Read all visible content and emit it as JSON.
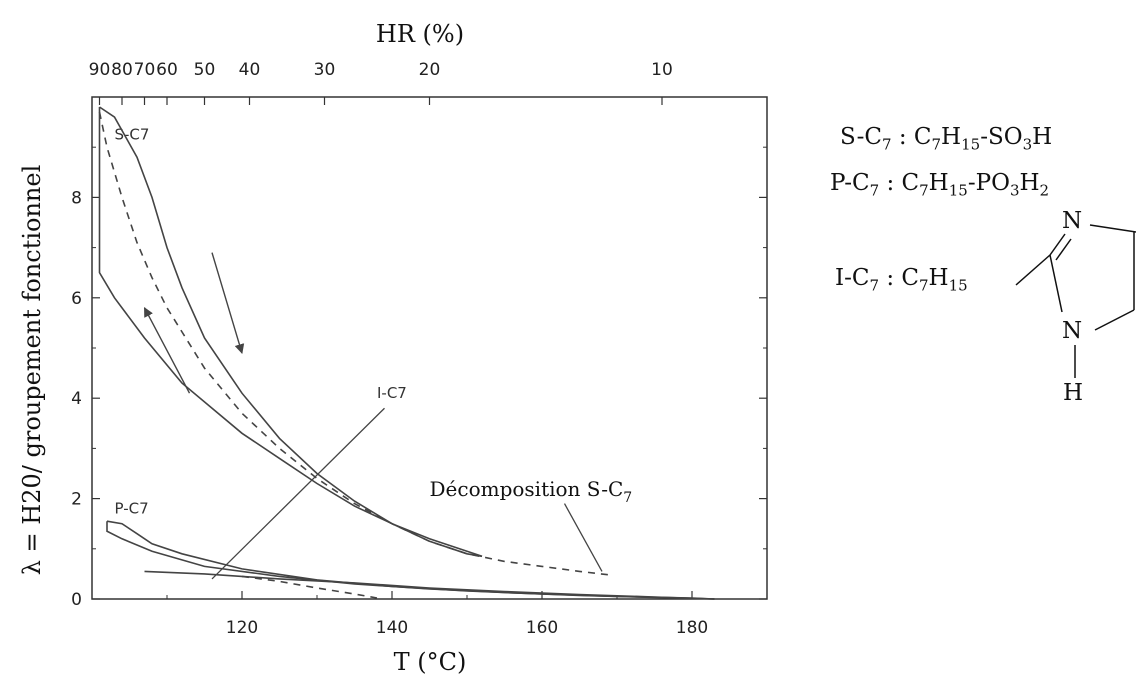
{
  "chart_data": {
    "type": "line",
    "xlabel": "T (°C)",
    "ylabel": "λ = H20/ groupement fonctionnel",
    "x2label": "HR (%)",
    "xlim": [
      100,
      190
    ],
    "ylim": [
      0,
      10
    ],
    "x_ticks": [
      120,
      140,
      160,
      180
    ],
    "y_ticks": [
      0,
      2,
      4,
      6,
      8
    ],
    "x2_ticks": [
      {
        "label": "90",
        "T": 101
      },
      {
        "label": "80",
        "T": 104
      },
      {
        "label": "70",
        "T": 107
      },
      {
        "label": "60",
        "T": 110
      },
      {
        "label": "50",
        "T": 115
      },
      {
        "label": "40",
        "T": 121
      },
      {
        "label": "30",
        "T": 131
      },
      {
        "label": "20",
        "T": 145
      },
      {
        "label": "10",
        "T": 176
      }
    ],
    "grid": false,
    "series": [
      {
        "name": "S-C7",
        "style": "solid",
        "points": [
          [
            101,
            9.8
          ],
          [
            103,
            9.6
          ],
          [
            106,
            8.8
          ],
          [
            108,
            8
          ],
          [
            110,
            7
          ],
          [
            112,
            6.2
          ],
          [
            115,
            5.2
          ],
          [
            120,
            4.1
          ],
          [
            125,
            3.2
          ],
          [
            130,
            2.5
          ],
          [
            135,
            1.95
          ],
          [
            140,
            1.5
          ],
          [
            145,
            1.15
          ],
          [
            150,
            0.9
          ],
          [
            152,
            0.85
          ]
        ]
      },
      {
        "name": "S-C7",
        "style": "solid",
        "points": [
          [
            101,
            9.8
          ],
          [
            101,
            8
          ],
          [
            101,
            6.5
          ],
          [
            103,
            6
          ],
          [
            107,
            5.2
          ],
          [
            112,
            4.3
          ],
          [
            120,
            3.3
          ],
          [
            125,
            2.8
          ],
          [
            130,
            2.3
          ],
          [
            135,
            1.85
          ],
          [
            140,
            1.5
          ],
          [
            145,
            1.2
          ],
          [
            150,
            0.95
          ],
          [
            152,
            0.85
          ]
        ]
      },
      {
        "name": "S-C7",
        "style": "dashed",
        "points": [
          [
            101,
            9.7
          ],
          [
            102,
            9
          ],
          [
            104,
            8
          ],
          [
            106,
            7.1
          ],
          [
            108,
            6.4
          ],
          [
            110,
            5.8
          ],
          [
            115,
            4.6
          ],
          [
            120,
            3.7
          ],
          [
            125,
            3
          ],
          [
            130,
            2.4
          ],
          [
            135,
            1.9
          ],
          [
            140,
            1.5
          ],
          [
            145,
            1.15
          ],
          [
            150,
            0.9
          ],
          [
            155,
            0.75
          ],
          [
            160,
            0.65
          ],
          [
            165,
            0.55
          ],
          [
            169,
            0.48
          ]
        ]
      },
      {
        "name": "P-C7",
        "style": "solid",
        "points": [
          [
            102,
            1.55
          ],
          [
            104,
            1.5
          ],
          [
            106,
            1.3
          ],
          [
            108,
            1.1
          ],
          [
            112,
            0.9
          ],
          [
            120,
            0.6
          ],
          [
            130,
            0.38
          ],
          [
            140,
            0.25
          ],
          [
            150,
            0.16
          ],
          [
            160,
            0.1
          ],
          [
            170,
            0.05
          ],
          [
            180,
            0.02
          ],
          [
            183,
            0
          ]
        ]
      },
      {
        "name": "P-C7",
        "style": "solid",
        "points": [
          [
            102,
            1.55
          ],
          [
            102,
            1.35
          ],
          [
            104,
            1.2
          ],
          [
            108,
            0.95
          ],
          [
            115,
            0.65
          ],
          [
            125,
            0.45
          ],
          [
            135,
            0.3
          ],
          [
            145,
            0.2
          ],
          [
            155,
            0.13
          ],
          [
            165,
            0.07
          ],
          [
            175,
            0.03
          ],
          [
            183,
            0
          ]
        ]
      },
      {
        "name": "P-C7",
        "style": "dashed",
        "points": [
          [
            120,
            0.45
          ],
          [
            125,
            0.35
          ],
          [
            130,
            0.22
          ],
          [
            135,
            0.1
          ],
          [
            138,
            0.02
          ]
        ]
      },
      {
        "name": "I-C7",
        "style": "solid",
        "points": [
          [
            107,
            0.55
          ],
          [
            115,
            0.5
          ],
          [
            125,
            0.4
          ],
          [
            135,
            0.32
          ],
          [
            145,
            0.22
          ],
          [
            155,
            0.15
          ],
          [
            165,
            0.09
          ],
          [
            175,
            0.04
          ],
          [
            183,
            0
          ]
        ]
      }
    ],
    "arrows": [
      {
        "from": [
          116,
          6.9
        ],
        "to": [
          120,
          4.9
        ]
      },
      {
        "from": [
          113,
          4.1
        ],
        "to": [
          107,
          5.8
        ]
      }
    ],
    "annotations": [
      {
        "text": "S-C7",
        "x": 103,
        "y": 9.15
      },
      {
        "text": "P-C7",
        "x": 103,
        "y": 1.7
      },
      {
        "text": "I-C7",
        "x": 138,
        "y": 4
      },
      {
        "text": "Décomposition  S-C7",
        "x": 145,
        "y": 2.05
      }
    ],
    "leaders": [
      {
        "from": [
          139,
          3.8
        ],
        "to": [
          116,
          0.4
        ]
      },
      {
        "from": [
          163,
          1.9
        ],
        "to": [
          168,
          0.55
        ]
      }
    ]
  },
  "legend": {
    "s_c7": {
      "label": "S-C7 :",
      "formula": "C7H15-SO3H"
    },
    "p_c7": {
      "label": "P-C7 :",
      "formula": "C7H15-PO3H2"
    },
    "i_c7": {
      "label": "I-C7 :",
      "chain": "C7H15",
      "atom_n": "N",
      "atom_h": "H"
    }
  }
}
